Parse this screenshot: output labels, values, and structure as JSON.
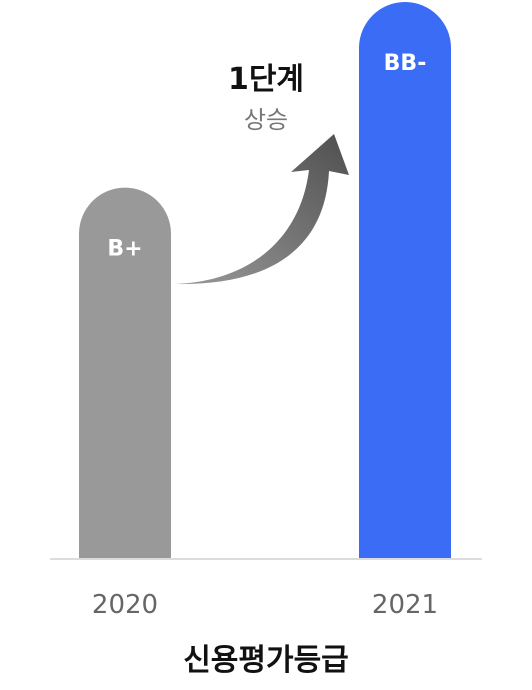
{
  "chart_data": {
    "type": "bar",
    "title": "신용평가등급",
    "categories": [
      "2020",
      "2021"
    ],
    "values": [
      2,
      3
    ],
    "value_scale_note_free": null,
    "data_labels": [
      "B+",
      "BB-"
    ],
    "colors": [
      "#999999",
      "#3a6cf6"
    ],
    "ylim": [
      0,
      3
    ],
    "grid": false,
    "annotation": {
      "main": "1단계",
      "sub": "상승",
      "arrow_color": "#6b6b6b"
    }
  }
}
